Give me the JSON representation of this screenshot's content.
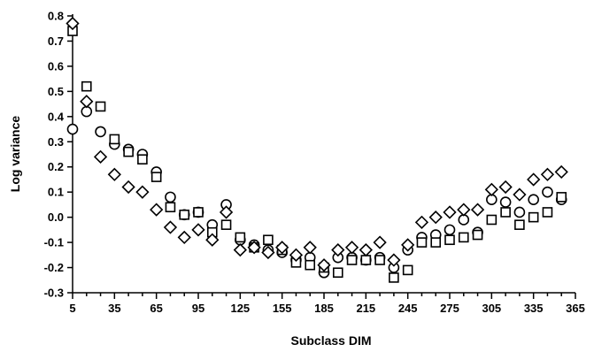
{
  "chart_data": {
    "type": "scatter",
    "title": "",
    "xlabel": "Subclass DIM",
    "ylabel": "Log variance",
    "xlim": [
      5,
      365
    ],
    "ylim": [
      -0.3,
      0.8
    ],
    "x_ticks": [
      "5",
      "35",
      "65",
      "95",
      "125",
      "155",
      "185",
      "215",
      "245",
      "275",
      "305",
      "335",
      "365"
    ],
    "y_ticks": [
      "0.8",
      "0.7",
      "0.6",
      "0.5",
      "0.4",
      "0.3",
      "0.2",
      "0.1",
      "0.0",
      "-0.1",
      "-0.2",
      "-0.3"
    ],
    "grid": false,
    "legend": "none",
    "series": [
      {
        "marker": "circle",
        "color": "#000000",
        "points": [
          [
            5,
            0.35
          ],
          [
            15,
            0.42
          ],
          [
            25,
            0.34
          ],
          [
            35,
            0.29
          ],
          [
            45,
            0.27
          ],
          [
            55,
            0.25
          ],
          [
            65,
            0.18
          ],
          [
            75,
            0.08
          ],
          [
            85,
            0.01
          ],
          [
            95,
            0.02
          ],
          [
            105,
            -0.03
          ],
          [
            115,
            0.05
          ],
          [
            125,
            -0.09
          ],
          [
            135,
            -0.11
          ],
          [
            145,
            -0.13
          ],
          [
            155,
            -0.14
          ],
          [
            165,
            -0.17
          ],
          [
            175,
            -0.16
          ],
          [
            185,
            -0.22
          ],
          [
            195,
            -0.16
          ],
          [
            205,
            -0.16
          ],
          [
            215,
            -0.17
          ],
          [
            225,
            -0.16
          ],
          [
            235,
            -0.2
          ],
          [
            245,
            -0.13
          ],
          [
            255,
            -0.08
          ],
          [
            265,
            -0.07
          ],
          [
            275,
            -0.05
          ],
          [
            285,
            -0.01
          ],
          [
            295,
            -0.06
          ],
          [
            305,
            0.07
          ],
          [
            315,
            0.06
          ],
          [
            325,
            0.02
          ],
          [
            335,
            0.07
          ],
          [
            345,
            0.1
          ],
          [
            355,
            0.07
          ]
        ]
      },
      {
        "marker": "square",
        "color": "#000000",
        "points": [
          [
            5,
            0.74
          ],
          [
            15,
            0.52
          ],
          [
            25,
            0.44
          ],
          [
            35,
            0.31
          ],
          [
            45,
            0.26
          ],
          [
            55,
            0.23
          ],
          [
            65,
            0.16
          ],
          [
            75,
            0.04
          ],
          [
            85,
            0.01
          ],
          [
            95,
            0.02
          ],
          [
            105,
            -0.06
          ],
          [
            115,
            -0.03
          ],
          [
            125,
            -0.08
          ],
          [
            135,
            -0.12
          ],
          [
            145,
            -0.09
          ],
          [
            155,
            -0.13
          ],
          [
            165,
            -0.18
          ],
          [
            175,
            -0.19
          ],
          [
            185,
            -0.2
          ],
          [
            195,
            -0.22
          ],
          [
            205,
            -0.17
          ],
          [
            215,
            -0.17
          ],
          [
            225,
            -0.17
          ],
          [
            235,
            -0.24
          ],
          [
            245,
            -0.21
          ],
          [
            255,
            -0.1
          ],
          [
            265,
            -0.1
          ],
          [
            275,
            -0.09
          ],
          [
            285,
            -0.08
          ],
          [
            295,
            -0.07
          ],
          [
            305,
            -0.01
          ],
          [
            315,
            0.02
          ],
          [
            325,
            -0.03
          ],
          [
            335,
            0.0
          ],
          [
            345,
            0.02
          ],
          [
            355,
            0.08
          ]
        ]
      },
      {
        "marker": "diamond",
        "color": "#000000",
        "points": [
          [
            5,
            0.77
          ],
          [
            15,
            0.46
          ],
          [
            25,
            0.24
          ],
          [
            35,
            0.17
          ],
          [
            45,
            0.12
          ],
          [
            55,
            0.1
          ],
          [
            65,
            0.03
          ],
          [
            75,
            -0.04
          ],
          [
            85,
            -0.08
          ],
          [
            95,
            -0.05
          ],
          [
            105,
            -0.09
          ],
          [
            115,
            0.02
          ],
          [
            125,
            -0.13
          ],
          [
            135,
            -0.12
          ],
          [
            145,
            -0.14
          ],
          [
            155,
            -0.12
          ],
          [
            165,
            -0.15
          ],
          [
            175,
            -0.12
          ],
          [
            185,
            -0.19
          ],
          [
            195,
            -0.13
          ],
          [
            205,
            -0.12
          ],
          [
            215,
            -0.13
          ],
          [
            225,
            -0.1
          ],
          [
            235,
            -0.17
          ],
          [
            245,
            -0.11
          ],
          [
            255,
            -0.02
          ],
          [
            265,
            0.0
          ],
          [
            275,
            0.02
          ],
          [
            285,
            0.03
          ],
          [
            295,
            0.03
          ],
          [
            305,
            0.11
          ],
          [
            315,
            0.12
          ],
          [
            325,
            0.09
          ],
          [
            335,
            0.15
          ],
          [
            345,
            0.17
          ],
          [
            355,
            0.18
          ]
        ]
      }
    ]
  }
}
